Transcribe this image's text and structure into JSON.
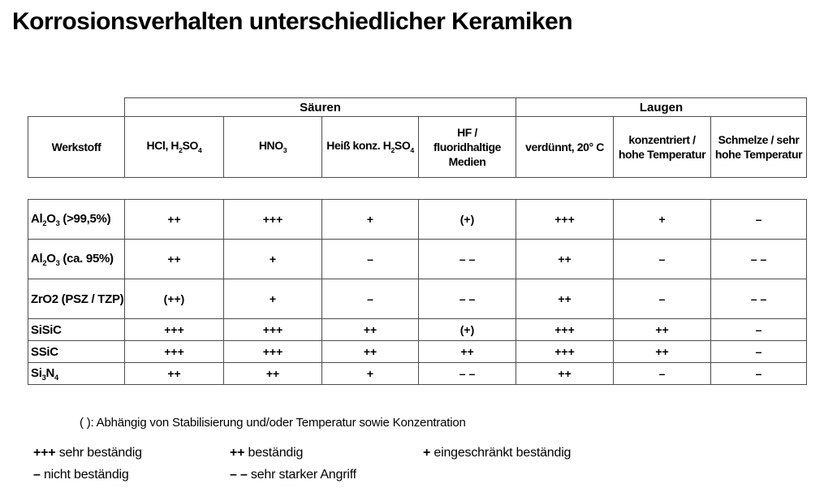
{
  "title": "Korrosionsverhalten unterschiedlicher Keramiken",
  "colors": {
    "border": "#4d4d4d",
    "text": "#000000",
    "background": "#ffffff"
  },
  "table": {
    "group_headers": [
      {
        "label": "Säuren",
        "span": 4
      },
      {
        "label": "Laugen",
        "span": 3
      }
    ],
    "columns": [
      "Werkstoff",
      "HCl, H_{2}SO_{4}",
      "HNO_{3}",
      "Heiß konz. H_{2}SO_{4}",
      "HF /\nfluoridhaltige\nMedien",
      "verdünnt, 20° C",
      "konzentriert /\nhohe Temperatur",
      "Schmelze / sehr\nhohe Temperatur"
    ],
    "rows": [
      {
        "material": "Al_{2}O_{3} (>99,5%)",
        "values": [
          "++",
          "+++",
          "+",
          "(+)",
          "+++",
          "+",
          "–"
        ]
      },
      {
        "material": "Al_{2}O_{3} (ca. 95%)",
        "values": [
          "++",
          "+",
          "–",
          "– –",
          "++",
          "–",
          "– –"
        ]
      },
      {
        "material": "ZrO2 (PSZ / TZP)",
        "values": [
          "(++)",
          "+",
          "–",
          "– –",
          "++",
          "–",
          "– –"
        ]
      },
      {
        "material": "SiSiC",
        "values": [
          "+++",
          "+++",
          "++",
          "(+)",
          "+++",
          "++",
          "–"
        ]
      },
      {
        "material": "SSiC",
        "values": [
          "+++",
          "+++",
          "++",
          "++",
          "+++",
          "++",
          "–"
        ]
      },
      {
        "material": "Si_{3}N_{4}",
        "values": [
          "++",
          "++",
          "+",
          "– –",
          "++",
          "–",
          "–"
        ]
      }
    ]
  },
  "note": "( ): Abhängig von Stabilisierung und/oder Temperatur sowie Konzentration",
  "legend": [
    {
      "symbol": "+++",
      "text": "sehr beständig"
    },
    {
      "symbol": "++",
      "text": "beständig"
    },
    {
      "symbol": "+",
      "text": "eingeschränkt beständig"
    },
    {
      "symbol": "–",
      "text": "nicht beständig"
    },
    {
      "symbol": "– –",
      "text": "sehr starker Angriff"
    }
  ]
}
